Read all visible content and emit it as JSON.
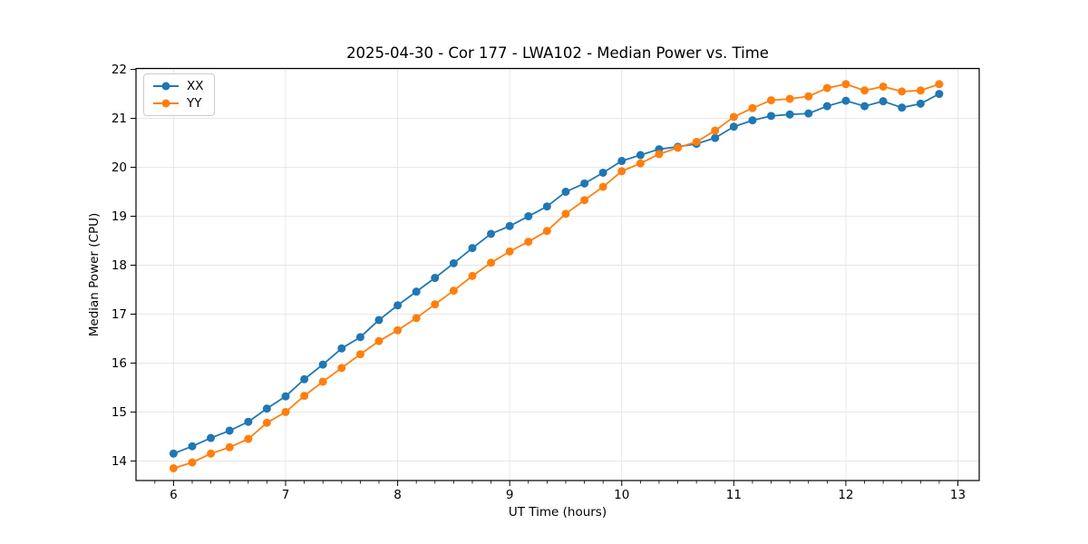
{
  "chart_data": {
    "type": "line",
    "title": "2025-04-30 - Cor 177 - LWA102 - Median Power vs. Time",
    "xlabel": "UT Time (hours)",
    "ylabel": "Median Power (CPU)",
    "xlim": [
      5.665,
      13.19
    ],
    "ylim": [
      13.6,
      22.02
    ],
    "xticks": [
      6,
      7,
      8,
      9,
      10,
      11,
      12,
      13
    ],
    "yticks": [
      14,
      15,
      16,
      17,
      18,
      19,
      20,
      21,
      22
    ],
    "x_minor_divisions": 6,
    "grid": true,
    "grid_color": "#e5e5e5",
    "legend_position": "upper-left",
    "marker": "circle",
    "x": [
      6.0,
      6.167,
      6.333,
      6.5,
      6.667,
      6.833,
      7.0,
      7.167,
      7.333,
      7.5,
      7.667,
      7.833,
      8.0,
      8.167,
      8.333,
      8.5,
      8.667,
      8.833,
      9.0,
      9.167,
      9.333,
      9.5,
      9.667,
      9.833,
      10.0,
      10.167,
      10.333,
      10.5,
      10.667,
      10.833,
      11.0,
      11.167,
      11.333,
      11.5,
      11.667,
      11.833,
      12.0,
      12.167,
      12.333,
      12.5,
      12.667,
      12.833
    ],
    "series": [
      {
        "name": "XX",
        "color": "#1f77b4",
        "values": [
          14.15,
          14.3,
          14.47,
          14.62,
          14.8,
          15.07,
          15.32,
          15.67,
          15.97,
          16.3,
          16.53,
          16.88,
          17.18,
          17.46,
          17.74,
          18.04,
          18.35,
          18.64,
          18.8,
          19.0,
          19.2,
          19.5,
          19.67,
          19.89,
          20.13,
          20.25,
          20.37,
          20.42,
          20.48,
          20.6,
          20.83,
          20.96,
          21.05,
          21.08,
          21.1,
          21.25,
          21.36,
          21.25,
          21.35,
          21.22,
          21.3,
          21.5
        ]
      },
      {
        "name": "YY",
        "color": "#ff7f0e",
        "values": [
          13.85,
          13.97,
          14.15,
          14.28,
          14.45,
          14.78,
          15.0,
          15.33,
          15.62,
          15.9,
          16.18,
          16.45,
          16.67,
          16.92,
          17.2,
          17.48,
          17.78,
          18.05,
          18.28,
          18.48,
          18.7,
          19.05,
          19.33,
          19.6,
          19.92,
          20.08,
          20.27,
          20.4,
          20.52,
          20.75,
          21.03,
          21.21,
          21.37,
          21.4,
          21.45,
          21.62,
          21.7,
          21.57,
          21.65,
          21.55,
          21.57,
          21.7
        ]
      }
    ]
  }
}
